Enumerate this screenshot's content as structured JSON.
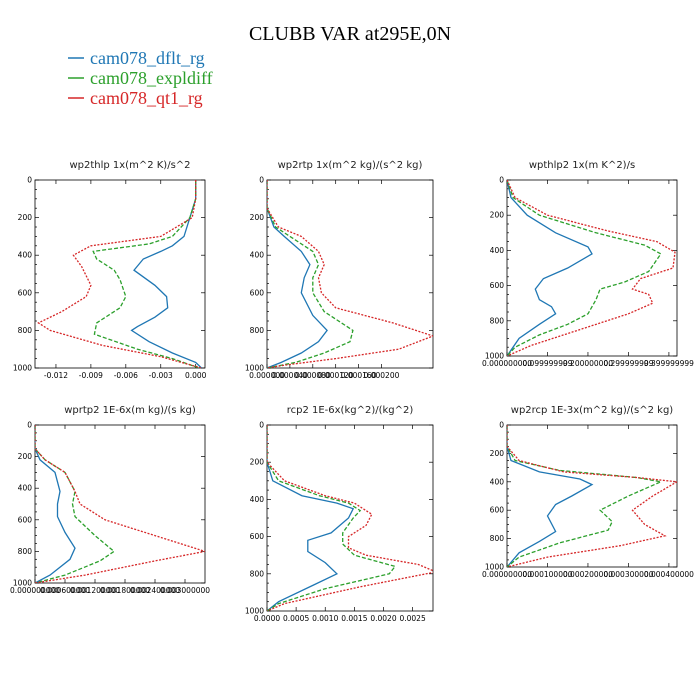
{
  "figure": {
    "title": "CLUBB VAR at295E,0N",
    "legend": [
      {
        "name": "cam078_dflt_rg",
        "color": "#1f77b4"
      },
      {
        "name": "cam078_expldiff",
        "color": "#2ca02c"
      },
      {
        "name": "cam078_qt1_rg",
        "color": "#d62728"
      }
    ]
  },
  "chart_data": [
    {
      "type": "line",
      "title": "wp2thlp   1x(m^2 K)/s^2",
      "xlim": [
        -0.0138,
        0.0008
      ],
      "ylim": [
        1000,
        0
      ],
      "xticks": [
        -0.012,
        -0.009,
        -0.006,
        -0.003,
        0.0
      ],
      "xtick_labels": [
        "-0.012",
        "-0.009",
        "-0.006",
        "-0.003",
        "0.000"
      ],
      "yticks": [
        0,
        200,
        400,
        600,
        800,
        1000
      ],
      "series": [
        {
          "name": "cam078_dflt_rg",
          "x": [
            0,
            0,
            -0.0005,
            -0.001,
            -0.002,
            -0.003,
            -0.0045,
            -0.0053,
            -0.0035,
            -0.0025,
            -0.0024,
            -0.0035,
            -0.005,
            -0.0055,
            -0.004,
            -0.002,
            0,
            0.0005
          ],
          "y": [
            0,
            100,
            200,
            300,
            350,
            380,
            420,
            480,
            560,
            620,
            680,
            730,
            780,
            800,
            860,
            920,
            970,
            1000
          ]
        },
        {
          "name": "cam078_expldiff",
          "x": [
            0,
            0,
            -0.0005,
            -0.002,
            -0.004,
            -0.0088,
            -0.0085,
            -0.007,
            -0.0065,
            -0.006,
            -0.0065,
            -0.0085,
            -0.0087,
            -0.005,
            -0.002,
            0.0003
          ],
          "y": [
            0,
            100,
            200,
            300,
            340,
            380,
            420,
            480,
            530,
            620,
            680,
            760,
            820,
            900,
            950,
            1000
          ]
        },
        {
          "name": "cam078_qt1_rg",
          "x": [
            0,
            0,
            -0.0003,
            -0.003,
            -0.009,
            -0.0105,
            -0.0098,
            -0.009,
            -0.0094,
            -0.0115,
            -0.0135,
            -0.0125,
            -0.008,
            -0.003,
            0.0005
          ],
          "y": [
            0,
            100,
            200,
            300,
            350,
            400,
            460,
            560,
            620,
            700,
            760,
            800,
            880,
            940,
            1000
          ]
        }
      ]
    },
    {
      "type": "line",
      "title": "wp2rtp   1x(m^2 kg)/(s^2 kg)",
      "xlim": [
        0,
        0.00029
      ],
      "ylim": [
        1000,
        0
      ],
      "xticks": [
        0,
        4e-05,
        8e-05,
        0.00012,
        0.00016,
        0.0002
      ],
      "xtick_labels": [
        "0.000000",
        "0.000040",
        "0.000080",
        "0.000120",
        "0.000160",
        "0.000200"
      ],
      "yticks": [
        0,
        200,
        400,
        600,
        800,
        1000
      ],
      "series": [
        {
          "name": "cam078_dflt_rg",
          "x": [
            0,
            0,
            1.2e-05,
            3e-05,
            6e-05,
            7.5e-05,
            6.5e-05,
            6e-05,
            8e-05,
            0.000105,
            9e-05,
            6e-05,
            2.5e-05,
            0
          ],
          "y": [
            0,
            150,
            250,
            300,
            380,
            450,
            520,
            600,
            720,
            800,
            860,
            920,
            970,
            1000
          ]
        },
        {
          "name": "cam078_expldiff",
          "x": [
            0,
            0,
            1.5e-05,
            4e-05,
            8e-05,
            9e-05,
            8e-05,
            8e-05,
            0.0001,
            0.00015,
            0.000145,
            0.0001,
            5e-05,
            0
          ],
          "y": [
            0,
            150,
            250,
            300,
            380,
            450,
            520,
            600,
            700,
            800,
            860,
            920,
            970,
            1000
          ]
        },
        {
          "name": "cam078_qt1_rg",
          "x": [
            0,
            0,
            2e-05,
            6e-05,
            9e-05,
            0.0001,
            9e-05,
            9.5e-05,
            0.00012,
            0.00022,
            0.00029,
            0.00023,
            0.00012,
            3e-05,
            0
          ],
          "y": [
            0,
            150,
            250,
            300,
            380,
            450,
            520,
            600,
            680,
            760,
            830,
            900,
            950,
            985,
            1000
          ]
        }
      ]
    },
    {
      "type": "line",
      "title": "wpthlp2   1x(m K^2)/s",
      "xlim": [
        0,
        0.42
      ],
      "ylim": [
        1000,
        0
      ],
      "xticks": [
        0,
        0.1,
        0.2,
        0.3,
        0.4
      ],
      "xtick_labels": [
        "0.000000000",
        "0.099999999",
        "0.200000000",
        "0.299999999",
        "0.399999999"
      ],
      "yticks": [
        0,
        200,
        400,
        600,
        800,
        1000
      ],
      "series": [
        {
          "name": "cam078_dflt_rg",
          "x": [
            0,
            0.01,
            0.05,
            0.12,
            0.2,
            0.21,
            0.15,
            0.09,
            0.07,
            0.08,
            0.11,
            0.12,
            0.08,
            0.03,
            0
          ],
          "y": [
            0,
            100,
            200,
            300,
            380,
            420,
            500,
            560,
            620,
            680,
            720,
            760,
            820,
            900,
            1000
          ]
        },
        {
          "name": "cam078_expldiff",
          "x": [
            0,
            0.015,
            0.08,
            0.22,
            0.34,
            0.38,
            0.35,
            0.29,
            0.23,
            0.22,
            0.2,
            0.15,
            0.08,
            0.02,
            0
          ],
          "y": [
            0,
            100,
            200,
            300,
            370,
            420,
            520,
            580,
            620,
            680,
            760,
            820,
            880,
            950,
            1000
          ]
        },
        {
          "name": "cam078_qt1_rg",
          "x": [
            0,
            0.02,
            0.1,
            0.25,
            0.37,
            0.415,
            0.41,
            0.33,
            0.31,
            0.35,
            0.36,
            0.3,
            0.18,
            0.06,
            0
          ],
          "y": [
            0,
            100,
            200,
            290,
            350,
            410,
            500,
            560,
            620,
            650,
            700,
            760,
            850,
            940,
            1000
          ]
        }
      ]
    },
    {
      "type": "line",
      "title": "wprtp2   1E-6x(m kg)/(s kg)",
      "xlim": [
        0,
        0.0034
      ],
      "ylim": [
        1000,
        0
      ],
      "xticks": [
        0,
        0.0006,
        0.0012,
        0.0018,
        0.0024,
        0.003
      ],
      "xtick_labels": [
        "0.000000000",
        "0.000600000",
        "0.001200000",
        "0.001800000",
        "0.002400000",
        "0.003000000"
      ],
      "yticks": [
        0,
        200,
        400,
        600,
        800,
        1000
      ],
      "series": [
        {
          "name": "cam078_dflt_rg",
          "x": [
            0,
            0,
            0.0001,
            0.0004,
            0.0005,
            0.00045,
            0.00045,
            0.0006,
            0.0008,
            0.0007,
            0.0003,
            0
          ],
          "y": [
            0,
            150,
            220,
            300,
            420,
            500,
            580,
            680,
            780,
            850,
            950,
            1000
          ]
        },
        {
          "name": "cam078_expldiff",
          "x": [
            0,
            0,
            0.0002,
            0.0006,
            0.0008,
            0.00075,
            0.0008,
            0.0012,
            0.00158,
            0.0013,
            0.0006,
            0
          ],
          "y": [
            0,
            150,
            220,
            300,
            420,
            500,
            580,
            700,
            800,
            860,
            950,
            1000
          ]
        },
        {
          "name": "cam078_qt1_rg",
          "x": [
            0,
            0,
            0.0002,
            0.0006,
            0.0008,
            0.0009,
            0.0014,
            0.0024,
            0.0034,
            0.0024,
            0.001,
            0
          ],
          "y": [
            0,
            150,
            220,
            300,
            420,
            500,
            600,
            700,
            800,
            860,
            950,
            1000
          ]
        }
      ]
    },
    {
      "type": "line",
      "title": "rcp2   1E-6x(kg^2)/(kg^2)",
      "xlim": [
        0,
        0.00285
      ],
      "ylim": [
        1000,
        0
      ],
      "xticks": [
        0,
        0.0005,
        0.001,
        0.0015,
        0.002,
        0.0025
      ],
      "xtick_labels": [
        "0.0000",
        "0.0005",
        "0.0010",
        "0.0015",
        "0.0020",
        "0.0025"
      ],
      "yticks": [
        0,
        200,
        400,
        600,
        800,
        1000
      ],
      "series": [
        {
          "name": "cam078_dflt_rg",
          "x": [
            0,
            0,
            0.0001,
            0.0006,
            0.0012,
            0.00148,
            0.0014,
            0.0011,
            0.0007,
            0.0007,
            0.001,
            0.0012,
            0.0008,
            0.0002,
            0
          ],
          "y": [
            0,
            200,
            300,
            380,
            420,
            450,
            500,
            580,
            620,
            680,
            740,
            800,
            860,
            950,
            1000
          ]
        },
        {
          "name": "cam078_expldiff",
          "x": [
            0,
            0,
            0.0002,
            0.0009,
            0.0014,
            0.0016,
            0.00148,
            0.0013,
            0.0013,
            0.0015,
            0.0022,
            0.0021,
            0.001,
            0.0002,
            0
          ],
          "y": [
            0,
            200,
            300,
            380,
            420,
            460,
            500,
            580,
            640,
            700,
            760,
            800,
            880,
            960,
            1000
          ]
        },
        {
          "name": "cam078_qt1_rg",
          "x": [
            0,
            0,
            0.0003,
            0.001,
            0.0015,
            0.0018,
            0.0017,
            0.0014,
            0.0014,
            0.0017,
            0.0026,
            0.0029,
            0.0016,
            0.0003,
            0
          ],
          "y": [
            0,
            200,
            300,
            380,
            420,
            480,
            540,
            600,
            660,
            700,
            750,
            790,
            870,
            960,
            1000
          ]
        }
      ]
    },
    {
      "type": "line",
      "title": "wp2rcp   1E-3x(m^2 kg)/(s^2 kg)",
      "xlim": [
        0,
        0.00042
      ],
      "ylim": [
        1000,
        0
      ],
      "xticks": [
        0,
        0.0001,
        0.0002,
        0.0003,
        0.0004
      ],
      "xtick_labels": [
        "0.000000000",
        "0.000100000",
        "0.000200000",
        "0.000300000",
        "0.000400000"
      ],
      "yticks": [
        0,
        200,
        400,
        600,
        800,
        1000
      ],
      "series": [
        {
          "name": "cam078_dflt_rg",
          "x": [
            0,
            0,
            1e-05,
            8e-05,
            0.00018,
            0.00021,
            0.00016,
            0.00012,
            0.0001,
            0.00012,
            8e-05,
            3e-05,
            0
          ],
          "y": [
            0,
            150,
            250,
            330,
            380,
            420,
            500,
            560,
            640,
            750,
            820,
            900,
            1000
          ]
        },
        {
          "name": "cam078_expldiff",
          "x": [
            0,
            0,
            2e-05,
            0.00013,
            0.00032,
            0.00038,
            0.0003,
            0.00023,
            0.00026,
            0.00025,
            0.00013,
            3e-05,
            0
          ],
          "y": [
            0,
            150,
            250,
            320,
            370,
            400,
            500,
            600,
            680,
            740,
            830,
            930,
            1000
          ]
        },
        {
          "name": "cam078_qt1_rg",
          "x": [
            0,
            0,
            3e-05,
            0.00014,
            0.00032,
            0.00042,
            0.00036,
            0.00031,
            0.00034,
            0.00039,
            0.00028,
            0.0001,
            0
          ],
          "y": [
            0,
            150,
            250,
            330,
            370,
            400,
            500,
            600,
            700,
            780,
            850,
            930,
            1000
          ]
        }
      ]
    }
  ]
}
